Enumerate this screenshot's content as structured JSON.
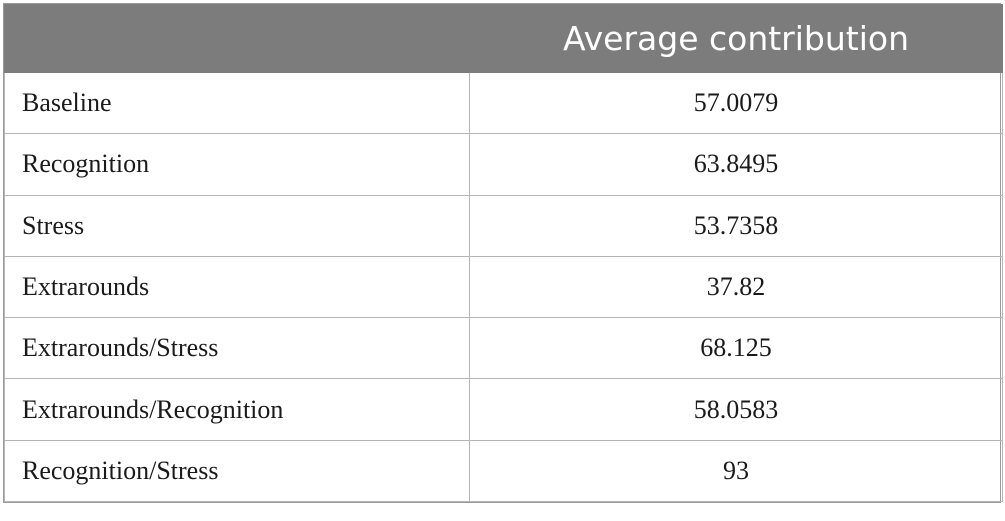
{
  "table": {
    "headers": [
      "",
      "Average contribution"
    ],
    "rows": [
      {
        "label": "Baseline",
        "value": "57.0079"
      },
      {
        "label": "Recognition",
        "value": "63.8495"
      },
      {
        "label": "Stress",
        "value": "53.7358"
      },
      {
        "label": "Extrarounds",
        "value": "37.82"
      },
      {
        "label": "Extrarounds/Stress",
        "value": "68.125"
      },
      {
        "label": "Extrarounds/Recognition",
        "value": "58.0583"
      },
      {
        "label": "Recognition/Stress",
        "value": "93"
      }
    ]
  },
  "colors": {
    "header_bg": "#7b7c7b",
    "header_text": "#ffffff",
    "grid": "#b5b5b5"
  }
}
